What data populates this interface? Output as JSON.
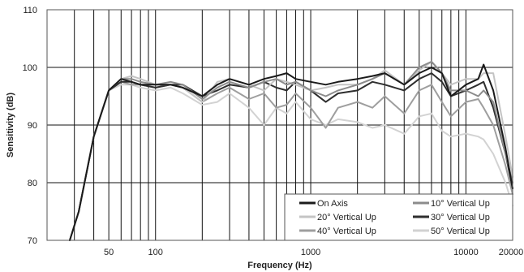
{
  "chart_data": {
    "type": "line",
    "title": "",
    "xlabel": "Frequency (Hz)",
    "ylabel": "Sensitivity (dB)",
    "x_scale": "log",
    "xlim": [
      20,
      20000
    ],
    "ylim": [
      70,
      110
    ],
    "x_ticks": [
      {
        "value": 50,
        "label": "50"
      },
      {
        "value": 100,
        "label": "100"
      },
      {
        "value": 1000,
        "label": "1000"
      },
      {
        "value": 10000,
        "label": "10000"
      },
      {
        "value": 20000,
        "label": "20000"
      }
    ],
    "y_ticks": [
      {
        "value": 70,
        "label": "70"
      },
      {
        "value": 80,
        "label": "80"
      },
      {
        "value": 90,
        "label": "90"
      },
      {
        "value": 100,
        "label": "100"
      },
      {
        "value": 110,
        "label": "110"
      }
    ],
    "grid": true,
    "legend_position": "bottom-right",
    "x": [
      28,
      32,
      40,
      50,
      60,
      70,
      80,
      100,
      125,
      150,
      200,
      250,
      300,
      400,
      500,
      600,
      700,
      800,
      1000,
      1250,
      1500,
      2000,
      2500,
      3000,
      4000,
      5000,
      6000,
      7000,
      8000,
      10000,
      12000,
      13000,
      15000,
      18000,
      20000
    ],
    "series": [
      {
        "name": "On Axis",
        "color": "#1a1a1a",
        "values": [
          70,
          75,
          88,
          96,
          98,
          97.5,
          97,
          97,
          97,
          96.5,
          95,
          97,
          98,
          97,
          98,
          98.5,
          99,
          98,
          97.5,
          97,
          97.5,
          98,
          98.5,
          99,
          97,
          99,
          100,
          99,
          95,
          97,
          98,
          100.5,
          96,
          86,
          79
        ]
      },
      {
        "name": "10° Vertical Up",
        "color": "#8c8c8c",
        "values": [
          70,
          75,
          88,
          96,
          98,
          98,
          97.5,
          97,
          97.5,
          97,
          94.5,
          96.5,
          97.5,
          96.5,
          97.5,
          98,
          97,
          97.5,
          96,
          95,
          96,
          97,
          98,
          99,
          97,
          100,
          101,
          99,
          96,
          96,
          95,
          96,
          94,
          85,
          80
        ]
      },
      {
        "name": "20° Vertical Up",
        "color": "#c4c4c4",
        "values": [
          70,
          75,
          88,
          96,
          98,
          98.5,
          98,
          97,
          97,
          96.5,
          94,
          97.5,
          98,
          97,
          96,
          98,
          97.5,
          97,
          96,
          96.5,
          97,
          97,
          98,
          99.5,
          97,
          99.5,
          101,
          99,
          97,
          98,
          98,
          99,
          99,
          88,
          81
        ]
      },
      {
        "name": "30° Vertical Up",
        "color": "#2e2e2e",
        "values": [
          70,
          75,
          88,
          96,
          97.5,
          97.5,
          97,
          96.5,
          97,
          97,
          95,
          96,
          97,
          96.5,
          97.5,
          96.5,
          96,
          97.5,
          96,
          94,
          95.5,
          96,
          97.5,
          97,
          96,
          98,
          99,
          97.5,
          95,
          96,
          97,
          97.5,
          93,
          85,
          79
        ]
      },
      {
        "name": "40° Vertical Up",
        "color": "#9e9e9e",
        "values": [
          70,
          75,
          88,
          96,
          97.5,
          97,
          97,
          96.5,
          97,
          96.5,
          94,
          95.5,
          96.5,
          94.5,
          95.5,
          93,
          93.5,
          95.5,
          93,
          89.5,
          93,
          94,
          93,
          95,
          92,
          96,
          97,
          94,
          91.5,
          94,
          94.5,
          93,
          90,
          83,
          78
        ]
      },
      {
        "name": "50° Vertical Up",
        "color": "#d2d2d2",
        "values": [
          70,
          75,
          88,
          96,
          97,
          97,
          96.5,
          96,
          96.5,
          95.5,
          93.5,
          94,
          95.5,
          93,
          90,
          93,
          92,
          94,
          91,
          90,
          91,
          90.5,
          89.5,
          90,
          88.5,
          91.5,
          92,
          89,
          88,
          88.5,
          88,
          87.5,
          85,
          80,
          76
        ]
      }
    ]
  }
}
